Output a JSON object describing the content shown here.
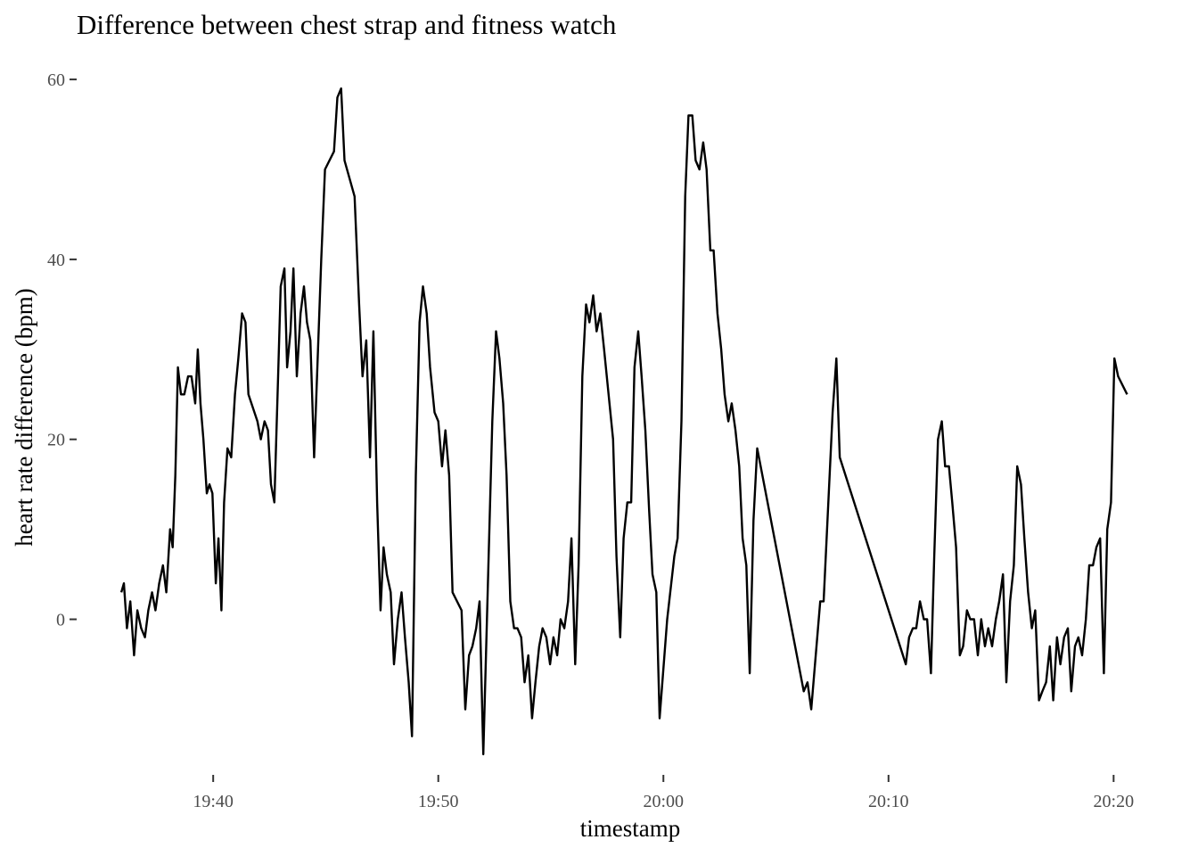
{
  "chart_data": {
    "type": "line",
    "title": "Difference between chest strap and fitness watch",
    "xlabel": "timestamp",
    "ylabel": "heart rate difference (bpm)",
    "xlim": [
      "19:35:43",
      "20:21:20"
    ],
    "ylim": [
      -16,
      61
    ],
    "x_ticks": [
      "19:40",
      "19:50",
      "20:00",
      "20:10",
      "20:20"
    ],
    "y_ticks": [
      0,
      20,
      40,
      60
    ],
    "grid": false,
    "series": [
      {
        "color": "#000000",
        "points": [
          [
            "19:35:55",
            3
          ],
          [
            "19:36:02",
            4
          ],
          [
            "19:36:10",
            -1
          ],
          [
            "19:36:19",
            2
          ],
          [
            "19:36:29",
            -4
          ],
          [
            "19:36:38",
            1
          ],
          [
            "19:36:48",
            -1
          ],
          [
            "19:36:58",
            -2
          ],
          [
            "19:37:07",
            1
          ],
          [
            "19:37:17",
            3
          ],
          [
            "19:37:26",
            1
          ],
          [
            "19:37:36",
            4
          ],
          [
            "19:37:46",
            6
          ],
          [
            "19:37:55",
            3
          ],
          [
            "19:38:05",
            10
          ],
          [
            "19:38:12",
            8
          ],
          [
            "19:38:19",
            16
          ],
          [
            "19:38:26",
            28
          ],
          [
            "19:38:34",
            25
          ],
          [
            "19:38:43",
            25
          ],
          [
            "19:38:53",
            27
          ],
          [
            "19:39:02",
            27
          ],
          [
            "19:39:12",
            24
          ],
          [
            "19:39:19",
            30
          ],
          [
            "19:39:26",
            24
          ],
          [
            "19:39:34",
            20
          ],
          [
            "19:39:43",
            14
          ],
          [
            "19:39:50",
            15
          ],
          [
            "19:39:58",
            14
          ],
          [
            "19:40:07",
            4
          ],
          [
            "19:40:14",
            9
          ],
          [
            "19:40:22",
            1
          ],
          [
            "19:40:29",
            13
          ],
          [
            "19:40:38",
            19
          ],
          [
            "19:40:48",
            18
          ],
          [
            "19:40:58",
            25
          ],
          [
            "19:41:07",
            29
          ],
          [
            "19:41:17",
            34
          ],
          [
            "19:41:26",
            33
          ],
          [
            "19:41:34",
            25
          ],
          [
            "19:41:58",
            22
          ],
          [
            "19:42:07",
            20
          ],
          [
            "19:42:17",
            22
          ],
          [
            "19:42:26",
            21
          ],
          [
            "19:42:34",
            15
          ],
          [
            "19:42:43",
            13
          ],
          [
            "19:42:53",
            27
          ],
          [
            "19:43:00",
            37
          ],
          [
            "19:43:10",
            39
          ],
          [
            "19:43:17",
            28
          ],
          [
            "19:43:26",
            32
          ],
          [
            "19:43:34",
            39
          ],
          [
            "19:43:43",
            27
          ],
          [
            "19:43:53",
            34
          ],
          [
            "19:44:02",
            37
          ],
          [
            "19:44:10",
            33
          ],
          [
            "19:44:19",
            31
          ],
          [
            "19:44:29",
            18
          ],
          [
            "19:44:48",
            40
          ],
          [
            "19:44:58",
            50
          ],
          [
            "19:45:22",
            52
          ],
          [
            "19:45:31",
            58
          ],
          [
            "19:45:41",
            59
          ],
          [
            "19:45:50",
            51
          ],
          [
            "19:46:17",
            47
          ],
          [
            "19:46:29",
            35
          ],
          [
            "19:46:38",
            27
          ],
          [
            "19:46:48",
            31
          ],
          [
            "19:46:58",
            18
          ],
          [
            "19:47:07",
            32
          ],
          [
            "19:47:17",
            13
          ],
          [
            "19:47:26",
            1
          ],
          [
            "19:47:34",
            8
          ],
          [
            "19:47:43",
            5
          ],
          [
            "19:47:53",
            3
          ],
          [
            "19:48:02",
            -5
          ],
          [
            "19:48:12",
            0
          ],
          [
            "19:48:22",
            3
          ],
          [
            "19:48:31",
            -2
          ],
          [
            "19:48:41",
            -7
          ],
          [
            "19:48:50",
            -13
          ],
          [
            "19:49:00",
            16
          ],
          [
            "19:49:10",
            33
          ],
          [
            "19:49:19",
            37
          ],
          [
            "19:49:29",
            34
          ],
          [
            "19:49:38",
            28
          ],
          [
            "19:49:50",
            23
          ],
          [
            "19:50:00",
            22
          ],
          [
            "19:50:10",
            17
          ],
          [
            "19:50:19",
            21
          ],
          [
            "19:50:29",
            16
          ],
          [
            "19:50:38",
            3
          ],
          [
            "19:51:02",
            1
          ],
          [
            "19:51:12",
            -10
          ],
          [
            "19:51:22",
            -4
          ],
          [
            "19:51:31",
            -3
          ],
          [
            "19:51:41",
            -1
          ],
          [
            "19:51:50",
            2
          ],
          [
            "19:52:00",
            -15
          ],
          [
            "19:52:24",
            22
          ],
          [
            "19:52:34",
            32
          ],
          [
            "19:52:43",
            29
          ],
          [
            "19:52:53",
            24
          ],
          [
            "19:53:02",
            16
          ],
          [
            "19:53:12",
            2
          ],
          [
            "19:53:22",
            -1
          ],
          [
            "19:53:31",
            -1
          ],
          [
            "19:53:41",
            -2
          ],
          [
            "19:53:50",
            -7
          ],
          [
            "19:54:00",
            -4
          ],
          [
            "19:54:10",
            -11
          ],
          [
            "19:54:19",
            -7
          ],
          [
            "19:54:29",
            -3
          ],
          [
            "19:54:38",
            -1
          ],
          [
            "19:54:48",
            -2
          ],
          [
            "19:54:58",
            -5
          ],
          [
            "19:55:07",
            -2
          ],
          [
            "19:55:17",
            -4
          ],
          [
            "19:55:26",
            0
          ],
          [
            "19:55:36",
            -1
          ],
          [
            "19:55:46",
            2
          ],
          [
            "19:55:55",
            9
          ],
          [
            "19:56:05",
            -5
          ],
          [
            "19:56:14",
            6
          ],
          [
            "19:56:24",
            27
          ],
          [
            "19:56:34",
            35
          ],
          [
            "19:56:43",
            33
          ],
          [
            "19:56:53",
            36
          ],
          [
            "19:57:02",
            32
          ],
          [
            "19:57:12",
            34
          ],
          [
            "19:57:22",
            30
          ],
          [
            "19:57:46",
            20
          ],
          [
            "19:57:55",
            7
          ],
          [
            "19:58:05",
            -2
          ],
          [
            "19:58:14",
            9
          ],
          [
            "19:58:24",
            13
          ],
          [
            "19:58:34",
            13
          ],
          [
            "19:58:43",
            28
          ],
          [
            "19:58:53",
            32
          ],
          [
            "19:59:02",
            27
          ],
          [
            "19:59:12",
            21
          ],
          [
            "19:59:22",
            12
          ],
          [
            "19:59:31",
            5
          ],
          [
            "19:59:41",
            3
          ],
          [
            "19:59:50",
            -11
          ],
          [
            "20:00:10",
            0
          ],
          [
            "20:00:29",
            7
          ],
          [
            "20:00:38",
            9
          ],
          [
            "20:00:48",
            22
          ],
          [
            "20:00:58",
            47
          ],
          [
            "20:01:07",
            56
          ],
          [
            "20:01:17",
            56
          ],
          [
            "20:01:26",
            51
          ],
          [
            "20:01:36",
            50
          ],
          [
            "20:01:46",
            53
          ],
          [
            "20:01:55",
            50
          ],
          [
            "20:02:05",
            41
          ],
          [
            "20:02:14",
            41
          ],
          [
            "20:02:24",
            34
          ],
          [
            "20:02:34",
            30
          ],
          [
            "20:02:43",
            25
          ],
          [
            "20:02:53",
            22
          ],
          [
            "20:03:02",
            24
          ],
          [
            "20:03:12",
            21
          ],
          [
            "20:03:22",
            17
          ],
          [
            "20:03:31",
            9
          ],
          [
            "20:03:41",
            6
          ],
          [
            "20:03:50",
            -6
          ],
          [
            "20:04:00",
            11
          ],
          [
            "20:04:10",
            19
          ],
          [
            "20:06:14",
            -8
          ],
          [
            "20:06:24",
            -7
          ],
          [
            "20:06:34",
            -10
          ],
          [
            "20:06:58",
            2
          ],
          [
            "20:07:07",
            2
          ],
          [
            "20:07:31",
            23
          ],
          [
            "20:07:41",
            29
          ],
          [
            "20:07:50",
            18
          ],
          [
            "20:10:46",
            -5
          ],
          [
            "20:10:55",
            -2
          ],
          [
            "20:11:05",
            -1
          ],
          [
            "20:11:14",
            -1
          ],
          [
            "20:11:24",
            2
          ],
          [
            "20:11:34",
            0
          ],
          [
            "20:11:43",
            0
          ],
          [
            "20:11:53",
            -6
          ],
          [
            "20:12:02",
            7
          ],
          [
            "20:12:12",
            20
          ],
          [
            "20:12:22",
            22
          ],
          [
            "20:12:31",
            17
          ],
          [
            "20:12:41",
            17
          ],
          [
            "20:12:50",
            13
          ],
          [
            "20:13:00",
            8
          ],
          [
            "20:13:10",
            -4
          ],
          [
            "20:13:19",
            -3
          ],
          [
            "20:13:29",
            1
          ],
          [
            "20:13:38",
            0
          ],
          [
            "20:13:48",
            0
          ],
          [
            "20:13:58",
            -4
          ],
          [
            "20:14:07",
            0
          ],
          [
            "20:14:17",
            -3
          ],
          [
            "20:14:26",
            -1
          ],
          [
            "20:14:36",
            -3
          ],
          [
            "20:14:46",
            0
          ],
          [
            "20:14:55",
            2
          ],
          [
            "20:15:05",
            5
          ],
          [
            "20:15:14",
            -7
          ],
          [
            "20:15:24",
            2
          ],
          [
            "20:15:34",
            6
          ],
          [
            "20:15:43",
            17
          ],
          [
            "20:15:53",
            15
          ],
          [
            "20:16:02",
            9
          ],
          [
            "20:16:12",
            3
          ],
          [
            "20:16:22",
            -1
          ],
          [
            "20:16:31",
            1
          ],
          [
            "20:16:41",
            -9
          ],
          [
            "20:16:50",
            -8
          ],
          [
            "20:17:00",
            -7
          ],
          [
            "20:17:10",
            -3
          ],
          [
            "20:17:19",
            -9
          ],
          [
            "20:17:29",
            -2
          ],
          [
            "20:17:38",
            -5
          ],
          [
            "20:17:48",
            -2
          ],
          [
            "20:17:58",
            -1
          ],
          [
            "20:18:07",
            -8
          ],
          [
            "20:18:17",
            -3
          ],
          [
            "20:18:26",
            -2
          ],
          [
            "20:18:36",
            -4
          ],
          [
            "20:18:46",
            0
          ],
          [
            "20:18:55",
            6
          ],
          [
            "20:19:05",
            6
          ],
          [
            "20:19:14",
            8
          ],
          [
            "20:19:24",
            9
          ],
          [
            "20:19:34",
            -6
          ],
          [
            "20:19:43",
            10
          ],
          [
            "20:19:53",
            13
          ],
          [
            "20:20:02",
            29
          ],
          [
            "20:20:12",
            27
          ],
          [
            "20:20:36",
            25
          ]
        ]
      }
    ]
  }
}
